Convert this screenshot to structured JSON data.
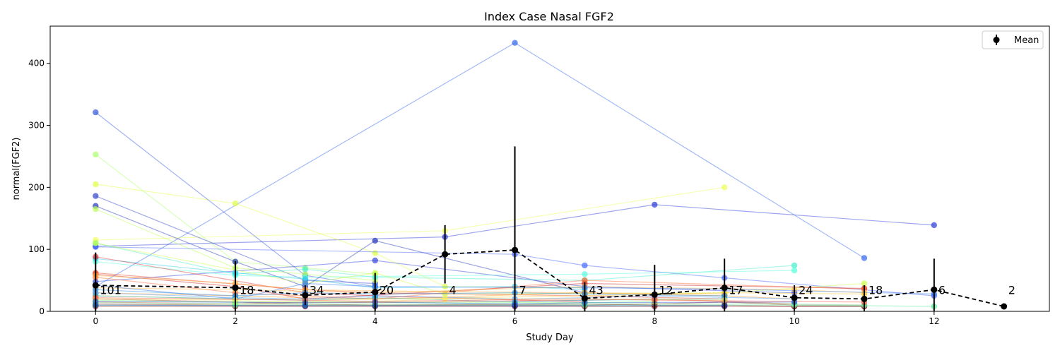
{
  "chart_data": {
    "type": "line",
    "title": "Index Case Nasal FGF2",
    "xlabel": "Study Day",
    "ylabel": "normal(FGF2)",
    "xlim": [
      -0.65,
      13.65
    ],
    "ylim": [
      0,
      460
    ],
    "xticks": [
      0,
      2,
      4,
      6,
      8,
      10,
      12
    ],
    "yticks": [
      0,
      100,
      200,
      300,
      400
    ],
    "grid": false,
    "legend": {
      "placement": "top-right",
      "entries": [
        "Mean"
      ]
    },
    "mean_series": {
      "name": "Mean",
      "color": "#000000",
      "points": [
        {
          "x": 0,
          "y": 42,
          "low": 0,
          "high": 95,
          "n": "101"
        },
        {
          "x": 2,
          "y": 38,
          "low": 0,
          "high": 81,
          "n": "18"
        },
        {
          "x": 3,
          "y": 26,
          "low": 10,
          "high": 42,
          "n": "34"
        },
        {
          "x": 4,
          "y": 31,
          "low": 0,
          "high": 62,
          "n": "20"
        },
        {
          "x": 5,
          "y": 92,
          "low": 45,
          "high": 139,
          "n": "4"
        },
        {
          "x": 6,
          "y": 99,
          "low": 0,
          "high": 266,
          "n": "7"
        },
        {
          "x": 7,
          "y": 21,
          "low": 0,
          "high": 47,
          "n": "43"
        },
        {
          "x": 8,
          "y": 27,
          "low": 0,
          "high": 75,
          "n": "12"
        },
        {
          "x": 9,
          "y": 38,
          "low": 0,
          "high": 85,
          "n": "17"
        },
        {
          "x": 10,
          "y": 22,
          "low": 0,
          "high": 42,
          "n": "24"
        },
        {
          "x": 11,
          "y": 20,
          "low": 0,
          "high": 42,
          "n": "18"
        },
        {
          "x": 12,
          "y": 35,
          "low": 0,
          "high": 85,
          "n": "6"
        },
        {
          "x": 13,
          "y": 8,
          "low": 8,
          "high": 8,
          "n": "2"
        }
      ]
    },
    "series": [
      {
        "color": "#3366ee",
        "points": [
          [
            0,
            40
          ],
          [
            6,
            433
          ],
          [
            11,
            86
          ]
        ]
      },
      {
        "color": "#2a3ad6",
        "points": [
          [
            0,
            105
          ],
          [
            5,
            120
          ],
          [
            8,
            172
          ],
          [
            12,
            139
          ]
        ]
      },
      {
        "color": "#eeff55",
        "points": [
          [
            0,
            115
          ],
          [
            5,
            130
          ],
          [
            9,
            200
          ]
        ]
      },
      {
        "color": "#ddff44",
        "points": [
          [
            0,
            205
          ],
          [
            2,
            174
          ],
          [
            4,
            94
          ],
          [
            5,
            40
          ],
          [
            7,
            38
          ]
        ]
      },
      {
        "color": "#aaff66",
        "points": [
          [
            0,
            253
          ],
          [
            2,
            80
          ],
          [
            3,
            70
          ],
          [
            4,
            60
          ]
        ]
      },
      {
        "color": "#3355dd",
        "points": [
          [
            0,
            321
          ],
          [
            3,
            58
          ],
          [
            4,
            40
          ]
        ]
      },
      {
        "color": "#3344cc",
        "points": [
          [
            0,
            186
          ],
          [
            3,
            50
          ],
          [
            4,
            45
          ]
        ]
      },
      {
        "color": "#2233bb",
        "points": [
          [
            0,
            170
          ],
          [
            2,
            80
          ],
          [
            3,
            40
          ],
          [
            4,
            114
          ],
          [
            7,
            30
          ]
        ]
      },
      {
        "color": "#bbff55",
        "points": [
          [
            0,
            165
          ],
          [
            2,
            70
          ],
          [
            3,
            60
          ],
          [
            4,
            50
          ]
        ]
      },
      {
        "color": "#4466ff",
        "points": [
          [
            0,
            104
          ],
          [
            6,
            92
          ],
          [
            7,
            74
          ],
          [
            9,
            54
          ],
          [
            12,
            25
          ]
        ]
      },
      {
        "color": "#3344dd",
        "points": [
          [
            0,
            48
          ],
          [
            4,
            82
          ],
          [
            7,
            40
          ],
          [
            10,
            30
          ]
        ]
      },
      {
        "color": "#44eecc",
        "points": [
          [
            0,
            110
          ],
          [
            2,
            60
          ],
          [
            3,
            68
          ],
          [
            4,
            55
          ],
          [
            7,
            50
          ],
          [
            10,
            74
          ]
        ]
      },
      {
        "color": "#55ffdd",
        "points": [
          [
            0,
            80
          ],
          [
            2,
            58
          ],
          [
            3,
            55
          ],
          [
            7,
            60
          ],
          [
            10,
            66
          ]
        ]
      },
      {
        "color": "#33ccee",
        "points": [
          [
            0,
            85
          ],
          [
            2,
            62
          ],
          [
            3,
            52
          ],
          [
            4,
            38
          ],
          [
            6,
            40
          ],
          [
            7,
            35
          ]
        ]
      },
      {
        "color": "#ccff44",
        "points": [
          [
            0,
            110
          ],
          [
            3,
            45
          ],
          [
            4,
            62
          ],
          [
            5,
            28
          ],
          [
            9,
            30
          ],
          [
            11,
            45
          ]
        ]
      },
      {
        "color": "#dd3333",
        "points": [
          [
            0,
            88
          ],
          [
            3,
            30
          ],
          [
            4,
            25
          ],
          [
            7,
            15
          ]
        ]
      },
      {
        "color": "#cc2222",
        "points": [
          [
            0,
            60
          ],
          [
            2,
            40
          ],
          [
            3,
            20
          ],
          [
            7,
            45
          ],
          [
            11,
            37
          ]
        ]
      },
      {
        "color": "#ff6633",
        "points": [
          [
            0,
            55
          ],
          [
            2,
            30
          ],
          [
            3,
            25
          ],
          [
            4,
            20
          ],
          [
            7,
            50
          ],
          [
            11,
            36
          ]
        ]
      },
      {
        "color": "#ee4422",
        "points": [
          [
            0,
            62
          ],
          [
            3,
            35
          ],
          [
            4,
            30
          ],
          [
            7,
            25
          ],
          [
            9,
            20
          ]
        ]
      },
      {
        "color": "#ffaa33",
        "points": [
          [
            0,
            58
          ],
          [
            2,
            45
          ],
          [
            3,
            35
          ],
          [
            4,
            33
          ],
          [
            7,
            30
          ],
          [
            9,
            28
          ]
        ]
      },
      {
        "color": "#ffbb44",
        "points": [
          [
            0,
            38
          ],
          [
            2,
            35
          ],
          [
            4,
            30
          ],
          [
            7,
            40
          ],
          [
            10,
            35
          ],
          [
            11,
            30
          ]
        ]
      },
      {
        "color": "#ff9922",
        "points": [
          [
            0,
            30
          ],
          [
            2,
            25
          ],
          [
            3,
            22
          ],
          [
            4,
            20
          ],
          [
            7,
            30
          ],
          [
            9,
            25
          ],
          [
            10,
            20
          ]
        ]
      },
      {
        "color": "#ffcc33",
        "points": [
          [
            0,
            25
          ],
          [
            2,
            20
          ],
          [
            3,
            18
          ],
          [
            7,
            25
          ],
          [
            9,
            30
          ],
          [
            11,
            28
          ]
        ]
      },
      {
        "color": "#993333",
        "points": [
          [
            0,
            20
          ],
          [
            2,
            15
          ],
          [
            3,
            12
          ],
          [
            4,
            10
          ],
          [
            7,
            12
          ],
          [
            8,
            10
          ],
          [
            9,
            10
          ],
          [
            10,
            8
          ],
          [
            11,
            8
          ]
        ]
      },
      {
        "color": "#882222",
        "points": [
          [
            0,
            8
          ],
          [
            2,
            8
          ],
          [
            3,
            8
          ],
          [
            4,
            8
          ],
          [
            6,
            8
          ],
          [
            7,
            8
          ],
          [
            8,
            8
          ],
          [
            9,
            8
          ],
          [
            10,
            8
          ],
          [
            11,
            8
          ]
        ]
      },
      {
        "color": "#aa2222",
        "points": [
          [
            0,
            12
          ],
          [
            2,
            10
          ],
          [
            3,
            10
          ],
          [
            4,
            10
          ],
          [
            7,
            10
          ],
          [
            8,
            12
          ],
          [
            9,
            15
          ],
          [
            10,
            10
          ],
          [
            11,
            10
          ]
        ]
      },
      {
        "color": "#cc4422",
        "points": [
          [
            0,
            15
          ],
          [
            2,
            12
          ],
          [
            3,
            15
          ],
          [
            4,
            14
          ],
          [
            7,
            18
          ],
          [
            8,
            20
          ],
          [
            10,
            12
          ]
        ]
      },
      {
        "color": "#55ee99",
        "points": [
          [
            0,
            10
          ],
          [
            2,
            10
          ],
          [
            3,
            10
          ],
          [
            4,
            10
          ],
          [
            7,
            10
          ],
          [
            10,
            10
          ],
          [
            12,
            8
          ]
        ]
      },
      {
        "color": "#66ffaa",
        "points": [
          [
            0,
            14
          ],
          [
            2,
            12
          ],
          [
            3,
            12
          ],
          [
            4,
            12
          ],
          [
            7,
            12
          ],
          [
            10,
            12
          ],
          [
            11,
            10
          ]
        ]
      },
      {
        "color": "#3377ee",
        "points": [
          [
            0,
            42
          ],
          [
            2,
            20
          ],
          [
            3,
            45
          ],
          [
            4,
            40
          ],
          [
            7,
            38
          ],
          [
            9,
            36
          ],
          [
            12,
            28
          ]
        ]
      },
      {
        "color": "#2288dd",
        "points": [
          [
            0,
            35
          ],
          [
            2,
            25
          ],
          [
            3,
            30
          ],
          [
            4,
            28
          ],
          [
            6,
            30
          ],
          [
            7,
            28
          ],
          [
            9,
            25
          ]
        ]
      },
      {
        "color": "#4499ff",
        "points": [
          [
            0,
            30
          ],
          [
            2,
            22
          ],
          [
            3,
            20
          ],
          [
            4,
            25
          ],
          [
            6,
            20
          ],
          [
            7,
            22
          ],
          [
            8,
            25
          ],
          [
            10,
            20
          ]
        ]
      },
      {
        "color": "#22aacc",
        "points": [
          [
            0,
            25
          ],
          [
            2,
            20
          ],
          [
            3,
            18
          ],
          [
            4,
            22
          ],
          [
            6,
            15
          ],
          [
            7,
            18
          ],
          [
            9,
            20
          ]
        ]
      },
      {
        "color": "#88ff77",
        "points": [
          [
            0,
            18
          ],
          [
            2,
            15
          ],
          [
            3,
            16
          ],
          [
            4,
            15
          ],
          [
            7,
            14
          ],
          [
            8,
            16
          ]
        ]
      },
      {
        "color": "#ffee55",
        "points": [
          [
            0,
            20
          ],
          [
            2,
            18
          ],
          [
            3,
            14
          ],
          [
            4,
            16
          ],
          [
            5,
            20
          ],
          [
            7,
            20
          ],
          [
            9,
            18
          ]
        ]
      },
      {
        "color": "#1133aa",
        "points": [
          [
            0,
            10
          ],
          [
            3,
            9
          ],
          [
            4,
            9
          ],
          [
            6,
            9
          ],
          [
            9,
            9
          ]
        ]
      },
      {
        "color": "#ff5544",
        "points": [
          [
            0,
            22
          ],
          [
            3,
            18
          ],
          [
            4,
            16
          ],
          [
            7,
            20
          ],
          [
            8,
            18
          ],
          [
            11,
            15
          ]
        ]
      },
      {
        "color": "#2255cc",
        "points": [
          [
            0,
            16
          ],
          [
            3,
            14
          ],
          [
            4,
            15
          ],
          [
            6,
            12
          ],
          [
            7,
            14
          ],
          [
            10,
            15
          ]
        ]
      }
    ]
  }
}
